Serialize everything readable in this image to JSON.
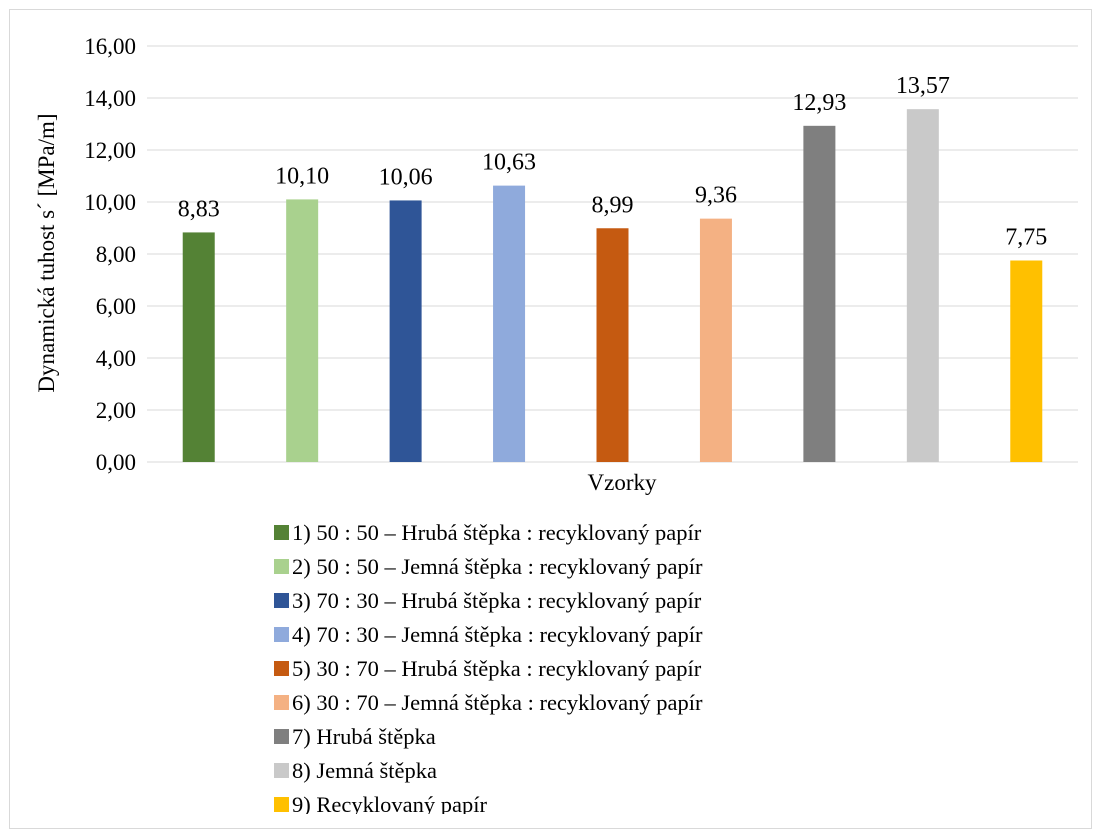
{
  "chart_data": {
    "type": "bar",
    "title": "",
    "xlabel": "Vzorky",
    "ylabel": "Dynamická tuhost s´ [MPa/m]",
    "ylim": [
      0,
      16
    ],
    "yticks": [
      "0,00",
      "2,00",
      "4,00",
      "6,00",
      "8,00",
      "10,00",
      "12,00",
      "14,00",
      "16,00"
    ],
    "grid": true,
    "legend_position": "bottom",
    "series": [
      {
        "name": "1) 50 : 50 – Hrubá štěpka : recyklovaný papír",
        "value": 8.83,
        "label": "8,83",
        "color": "#548235"
      },
      {
        "name": "2) 50 : 50 – Jemná štěpka : recyklovaný papír",
        "value": 10.1,
        "label": "10,10",
        "color": "#a9d18e"
      },
      {
        "name": "3) 70 : 30 – Hrubá štěpka : recyklovaný papír",
        "value": 10.06,
        "label": "10,06",
        "color": "#2f5597"
      },
      {
        "name": "4) 70 : 30 – Jemná štěpka : recyklovaný papír",
        "value": 10.63,
        "label": "10,63",
        "color": "#8faadc"
      },
      {
        "name": "5) 30 : 70 – Hrubá štěpka : recyklovaný papír",
        "value": 8.99,
        "label": "8,99",
        "color": "#c55a11"
      },
      {
        "name": "6) 30 : 70 – Jemná štěpka : recyklovaný papír",
        "value": 9.36,
        "label": "9,36",
        "color": "#f4b183"
      },
      {
        "name": "7) Hrubá štěpka",
        "value": 12.93,
        "label": "12,93",
        "color": "#7f7f7f"
      },
      {
        "name": "8) Jemná štěpka",
        "value": 13.57,
        "label": "13,57",
        "color": "#c9c9c9"
      },
      {
        "name": "9) Recyklovaný papír",
        "value": 7.75,
        "label": "7,75",
        "color": "#ffc000"
      }
    ]
  }
}
